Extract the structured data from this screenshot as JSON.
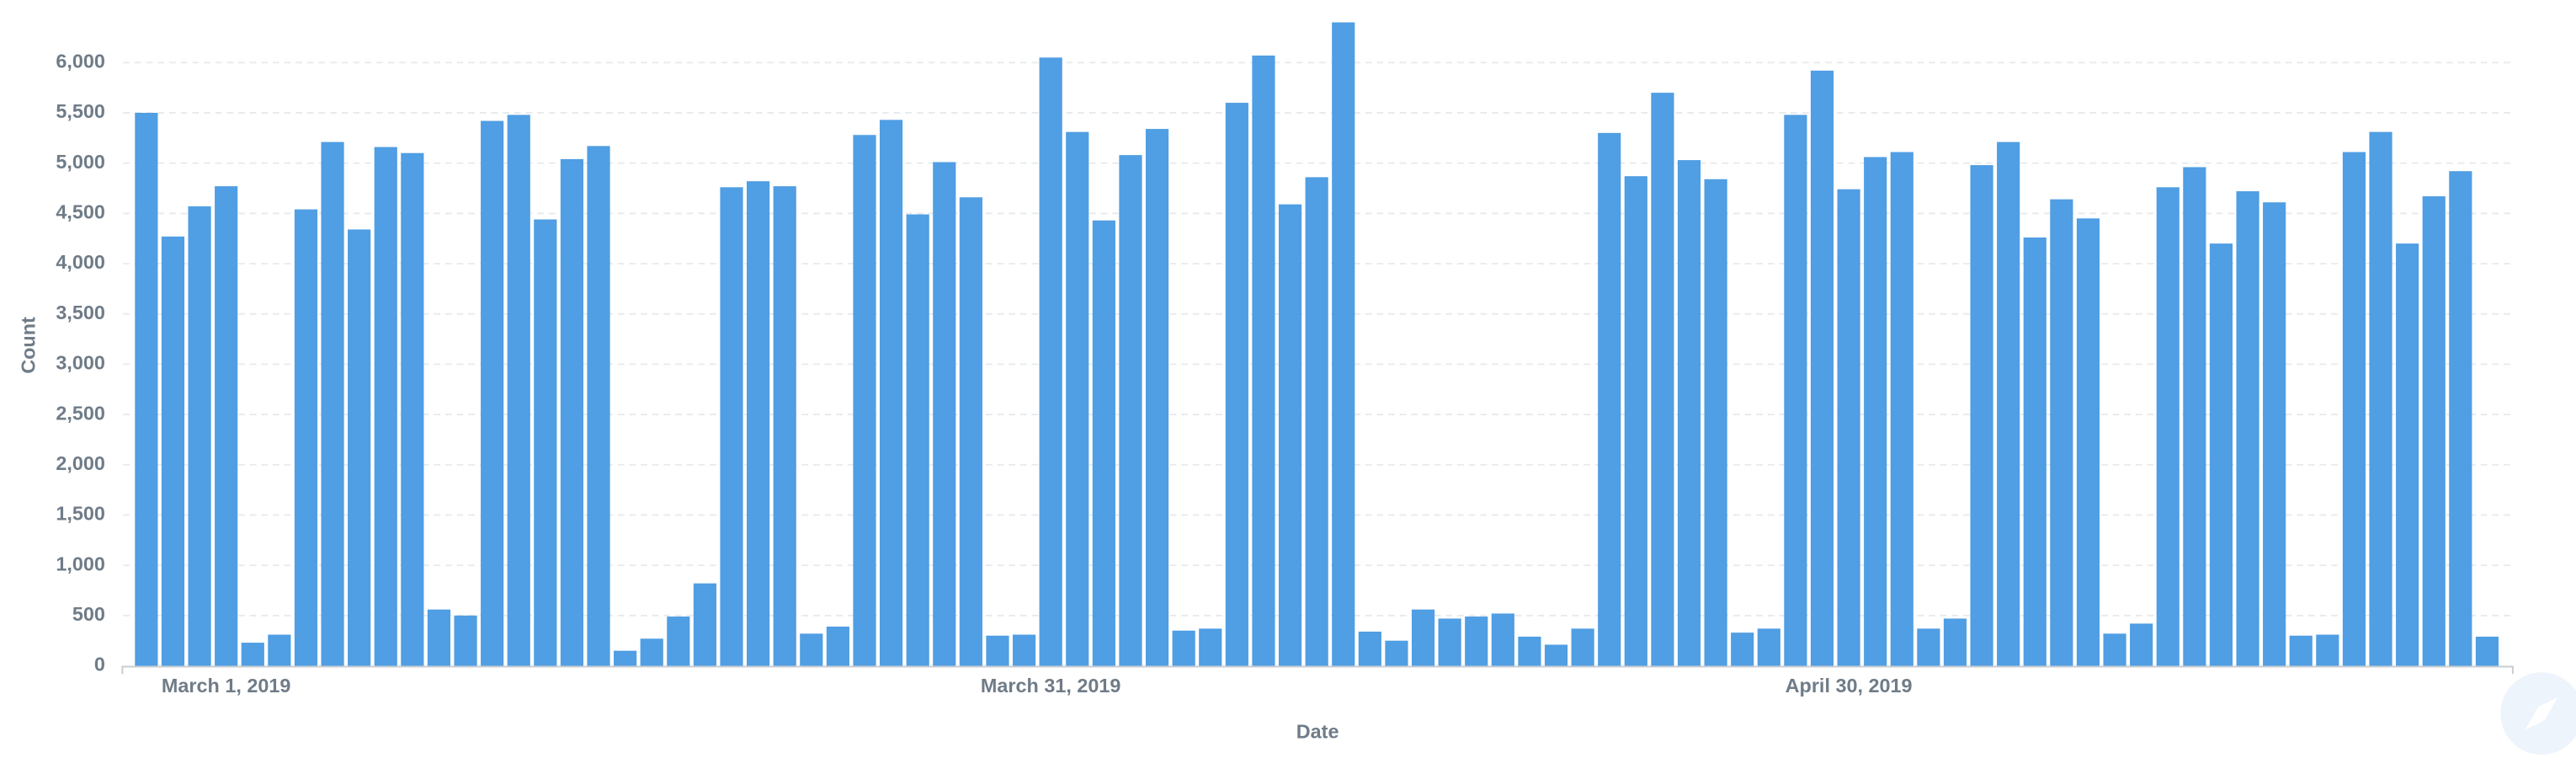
{
  "chart_data": {
    "type": "bar",
    "x_label": "Date",
    "y_label": "Count",
    "color": "#509ee3",
    "grid": true,
    "ylim": [
      0,
      6500
    ],
    "yticks": [
      0,
      500,
      {
        "value": 1000,
        "label": "1,000"
      },
      {
        "value": 1500,
        "label": "1,500"
      },
      {
        "value": 2000,
        "label": "2,000"
      },
      {
        "value": 2500,
        "label": "2,500"
      },
      {
        "value": 3000,
        "label": "3,000"
      },
      {
        "value": 3500,
        "label": "3,500"
      },
      {
        "value": 4000,
        "label": "4,000"
      },
      {
        "value": 4500,
        "label": "4,500"
      },
      {
        "value": 5000,
        "label": "5,000"
      },
      {
        "value": 5500,
        "label": "5,500"
      },
      {
        "value": 6000,
        "label": "6,000"
      }
    ],
    "categories": [
      null,
      null,
      null,
      "March 1, 2019",
      null,
      null,
      null,
      null,
      null,
      null,
      null,
      null,
      null,
      null,
      null,
      null,
      null,
      null,
      null,
      null,
      null,
      null,
      null,
      null,
      null,
      null,
      null,
      null,
      null,
      null,
      null,
      null,
      null,
      null,
      "March 31, 2019",
      null,
      null,
      null,
      null,
      null,
      null,
      null,
      null,
      null,
      null,
      null,
      null,
      null,
      null,
      null,
      null,
      null,
      null,
      null,
      null,
      null,
      null,
      null,
      null,
      null,
      null,
      null,
      null,
      null,
      "April 30, 2019",
      null,
      null,
      null,
      null,
      null,
      null,
      null,
      null,
      null,
      null,
      null,
      null,
      null,
      null,
      null,
      null,
      null,
      null,
      null,
      null,
      null,
      null,
      null,
      null
    ],
    "values": [
      5500,
      4270,
      4570,
      4770,
      230,
      310,
      4540,
      5210,
      4340,
      5160,
      5100,
      560,
      500,
      5420,
      5480,
      4440,
      5040,
      5170,
      150,
      270,
      490,
      820,
      4760,
      4820,
      4770,
      320,
      390,
      5280,
      5430,
      4490,
      5010,
      4660,
      300,
      310,
      6050,
      5310,
      4430,
      5080,
      5340,
      350,
      370,
      5600,
      6070,
      4590,
      4860,
      6400,
      340,
      250,
      560,
      470,
      490,
      520,
      290,
      210,
      370,
      5300,
      4870,
      5700,
      5030,
      4840,
      330,
      370,
      5480,
      5920,
      4740,
      5060,
      5110,
      370,
      470,
      4980,
      5210,
      4260,
      4640,
      4450,
      320,
      420,
      4760,
      4960,
      4200,
      4720,
      4610,
      300,
      310,
      5110,
      5310,
      4200,
      4670,
      4920,
      290
    ]
  }
}
